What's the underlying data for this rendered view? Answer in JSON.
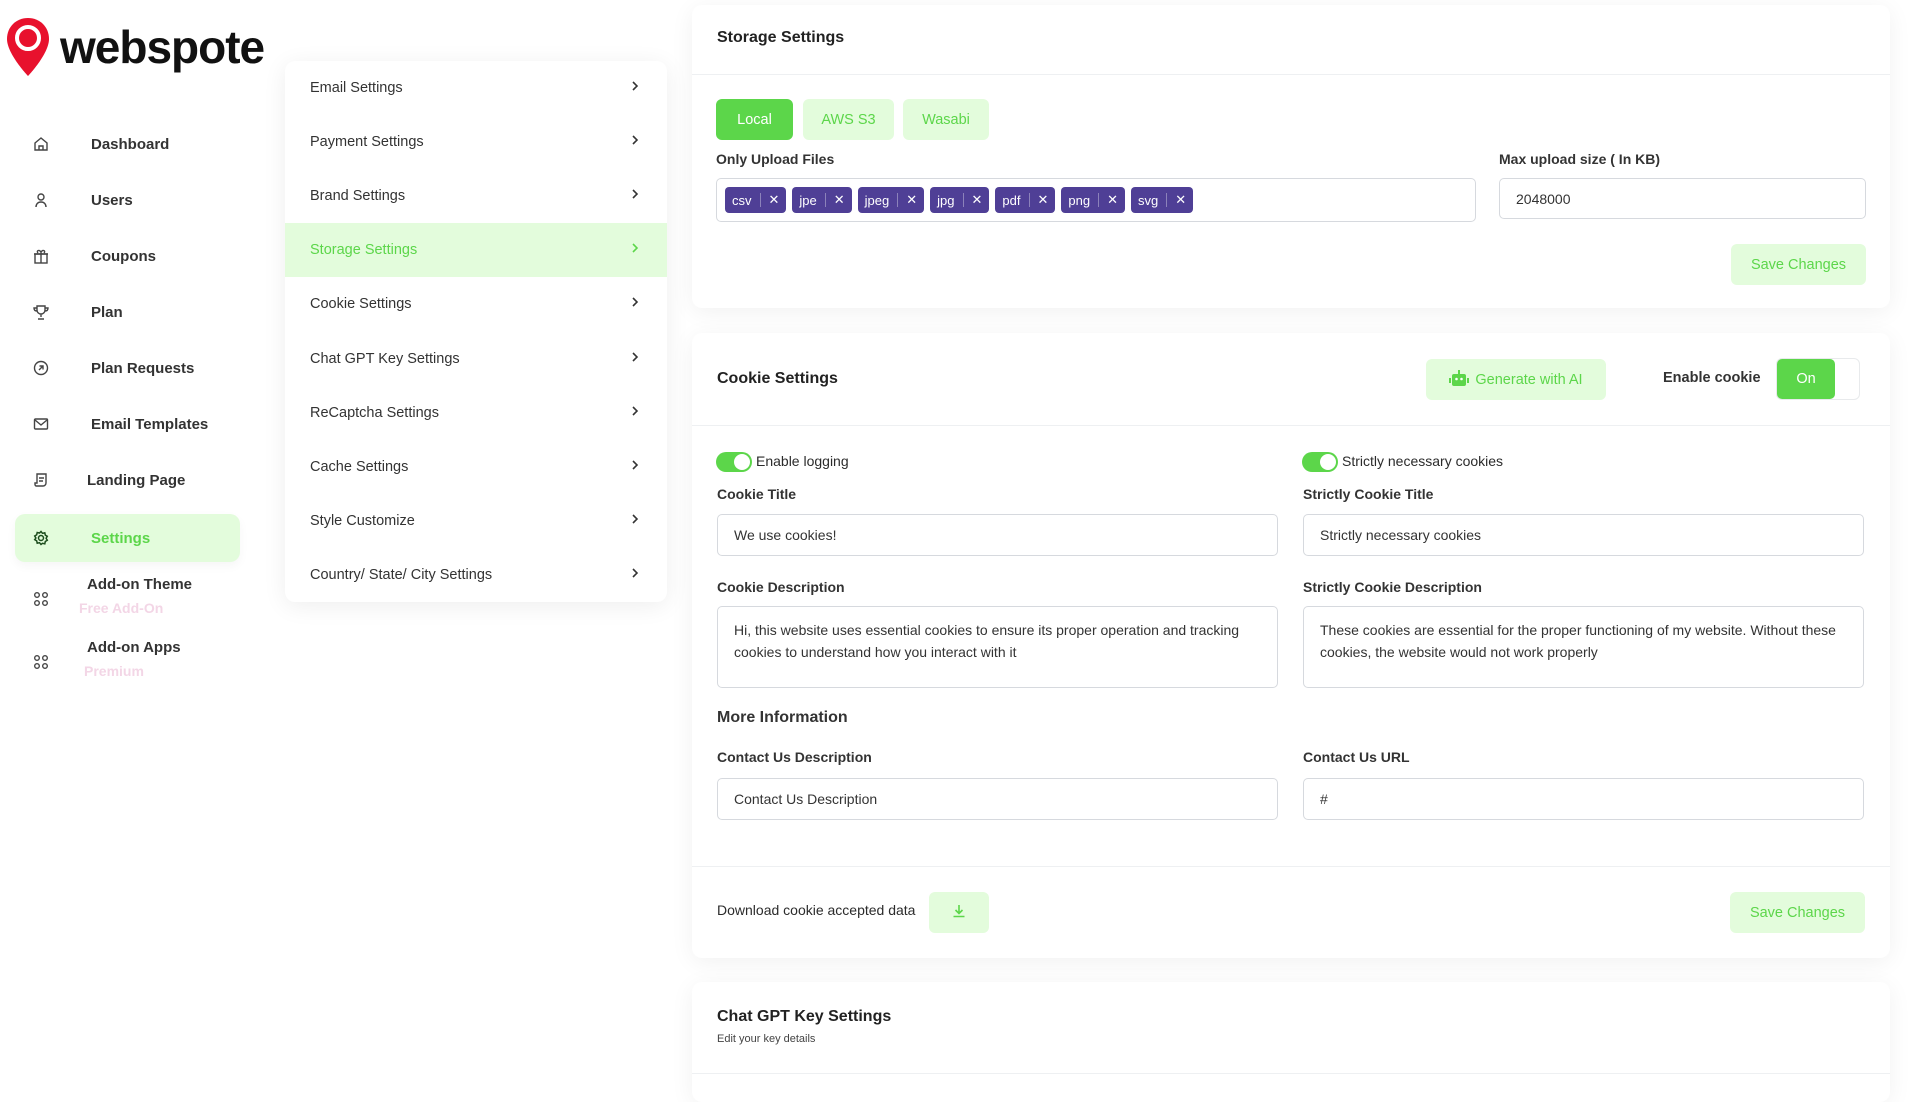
{
  "brand": {
    "name": "webspote",
    "color": "#e8112d"
  },
  "colors": {
    "accent": "#5cd64a",
    "accent_light": "#e3fcdc",
    "tag": "#4f3f96"
  },
  "sidebar": {
    "items": [
      {
        "label": "Dashboard",
        "icon": "home-icon"
      },
      {
        "label": "Users",
        "icon": "user-icon"
      },
      {
        "label": "Coupons",
        "icon": "gift-icon"
      },
      {
        "label": "Plan",
        "icon": "trophy-icon"
      },
      {
        "label": "Plan Requests",
        "icon": "arrow-circle-icon"
      },
      {
        "label": "Email Templates",
        "icon": "mail-icon"
      },
      {
        "label": "Landing Page",
        "icon": "page-icon"
      },
      {
        "label": "Settings",
        "icon": "gear-icon",
        "active": true
      },
      {
        "label": "Add-on Theme",
        "sub": "Free Add-On",
        "icon": "grid-icon"
      },
      {
        "label": "Add-on Apps",
        "sub": "Premium",
        "icon": "grid-icon"
      }
    ]
  },
  "submenu": {
    "items": [
      "Email Settings",
      "Payment Settings",
      "Brand Settings",
      "Storage Settings",
      "Cookie Settings",
      "Chat GPT Key Settings",
      "ReCaptcha Settings",
      "Cache Settings",
      "Style Customize",
      "Country/ State/ City Settings"
    ],
    "active": "Storage Settings"
  },
  "storage": {
    "title": "Storage Settings",
    "tabs": [
      "Local",
      "AWS S3",
      "Wasabi"
    ],
    "active_tab": "Local",
    "upload_label": "Only Upload Files",
    "file_types": [
      "csv",
      "jpe",
      "jpeg",
      "jpg",
      "pdf",
      "png",
      "svg"
    ],
    "max_label": "Max upload size ( In KB)",
    "max_value": "2048000",
    "save": "Save Changes"
  },
  "cookie": {
    "title": "Cookie Settings",
    "generate": "Generate with AI",
    "enable_label": "Enable cookie",
    "enable_value": "On",
    "logging": "Enable logging",
    "strictly": "Strictly necessary cookies",
    "cookie_title_label": "Cookie Title",
    "cookie_title": "We use cookies!",
    "strict_title_label": "Strictly Cookie Title",
    "strict_title": "Strictly necessary cookies",
    "cookie_desc_label": "Cookie Description",
    "cookie_desc": "Hi, this website uses essential cookies to ensure its proper operation and tracking cookies to understand how you interact with it",
    "strict_desc_label": "Strictly Cookie Description",
    "strict_desc": "These cookies are essential for the proper functioning of my website. Without these cookies, the website would not work properly",
    "more_info": "More Information",
    "contact_desc_label": "Contact Us Description",
    "contact_desc_placeholder": "Contact Us Description",
    "contact_url_label": "Contact Us URL",
    "contact_url": "#",
    "download": "Download cookie accepted data",
    "save": "Save Changes"
  },
  "chatgpt": {
    "title": "Chat GPT Key Settings",
    "subtitle": "Edit your key details"
  }
}
